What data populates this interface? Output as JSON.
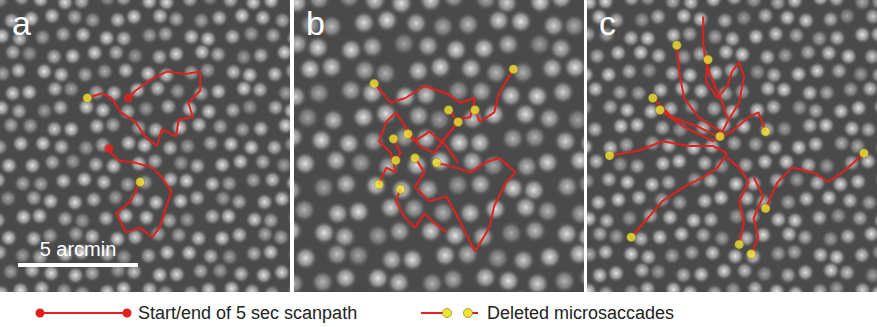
{
  "chart_data": [
    {
      "type": "line",
      "title": "a",
      "xlim": [
        0,
        12
      ],
      "ylim": [
        0,
        12
      ],
      "tick_labels": false,
      "grid": false,
      "scanpath": [
        [
          [
            5.3,
            4.0
          ],
          [
            5.6,
            3.7
          ],
          [
            6.3,
            3.2
          ],
          [
            6.9,
            2.9
          ],
          [
            7.7,
            3.0
          ],
          [
            8.3,
            2.9
          ],
          [
            8.3,
            3.7
          ],
          [
            7.8,
            4.2
          ],
          [
            8.0,
            4.8
          ],
          [
            7.4,
            4.9
          ],
          [
            7.3,
            5.6
          ],
          [
            6.7,
            5.3
          ],
          [
            6.5,
            6.0
          ],
          [
            6.0,
            5.6
          ],
          [
            5.6,
            5.0
          ],
          [
            5.0,
            4.6
          ],
          [
            4.6,
            4.0
          ],
          [
            4.2,
            3.8
          ],
          [
            3.6,
            4.0
          ]
        ],
        [
          [
            5.8,
            7.5
          ],
          [
            5.4,
            8.3
          ],
          [
            4.8,
            8.8
          ],
          [
            5.2,
            9.6
          ],
          [
            5.8,
            9.4
          ],
          [
            6.3,
            9.8
          ],
          [
            6.6,
            9.4
          ],
          [
            6.9,
            8.5
          ],
          [
            7.1,
            7.9
          ],
          [
            6.7,
            7.3
          ],
          [
            6.3,
            6.9
          ],
          [
            5.6,
            6.7
          ],
          [
            4.9,
            6.6
          ],
          [
            4.6,
            6.3
          ],
          [
            4.5,
            6.1
          ]
        ]
      ],
      "start": [
        5.3,
        4.0
      ],
      "end": [
        4.5,
        6.1
      ],
      "deleted_microsaccades": [
        [
          3.6,
          4.0
        ],
        [
          5.8,
          7.5
        ]
      ],
      "scale_bar": {
        "length": 5,
        "label": "5 arcmin"
      }
    },
    {
      "type": "line",
      "title": "b",
      "xlim": [
        0,
        12
      ],
      "ylim": [
        0,
        12
      ],
      "tick_labels": false,
      "grid": false,
      "scanpath": [
        [
          [
            3.3,
            3.4
          ],
          [
            4.0,
            4.2
          ],
          [
            4.6,
            4.0
          ],
          [
            5.4,
            3.5
          ],
          [
            6.3,
            3.8
          ],
          [
            6.9,
            4.2
          ],
          [
            7.5,
            4.0
          ],
          [
            7.3,
            4.8
          ],
          [
            6.7,
            4.9
          ],
          [
            6.4,
            4.5
          ]
        ],
        [
          [
            9.1,
            2.8
          ],
          [
            8.5,
            3.8
          ],
          [
            8.3,
            4.6
          ],
          [
            7.7,
            5.0
          ],
          [
            7.5,
            4.5
          ]
        ],
        [
          [
            6.8,
            5.0
          ],
          [
            6.3,
            5.6
          ],
          [
            5.8,
            6.3
          ],
          [
            5.2,
            6.0
          ],
          [
            4.8,
            5.6
          ],
          [
            4.7,
            5.5
          ]
        ],
        [
          [
            4.1,
            5.7
          ],
          [
            4.4,
            6.3
          ],
          [
            4.2,
            6.6
          ]
        ],
        [
          [
            5.0,
            6.5
          ],
          [
            5.4,
            7.1
          ],
          [
            5.0,
            7.7
          ],
          [
            5.6,
            8.3
          ],
          [
            6.3,
            8.1
          ],
          [
            6.7,
            8.8
          ],
          [
            7.1,
            9.6
          ],
          [
            7.5,
            10.4
          ],
          [
            8.1,
            9.4
          ],
          [
            8.3,
            8.5
          ],
          [
            8.8,
            7.5
          ],
          [
            9.2,
            7.1
          ],
          [
            8.5,
            6.5
          ],
          [
            7.9,
            6.7
          ],
          [
            7.3,
            7.1
          ],
          [
            6.7,
            6.9
          ],
          [
            5.9,
            6.7
          ]
        ],
        [
          [
            4.4,
            7.8
          ],
          [
            4.2,
            8.3
          ],
          [
            4.6,
            9.0
          ],
          [
            5.0,
            9.4
          ],
          [
            5.4,
            8.8
          ],
          [
            5.8,
            9.2
          ],
          [
            6.3,
            9.6
          ]
        ],
        [
          [
            3.5,
            7.6
          ],
          [
            3.8,
            6.9
          ],
          [
            4.2,
            7.1
          ],
          [
            4.0,
            6.3
          ],
          [
            3.5,
            5.8
          ],
          [
            3.8,
            5.0
          ],
          [
            4.2,
            4.6
          ],
          [
            4.6,
            5.2
          ],
          [
            5.0,
            5.8
          ],
          [
            5.6,
            5.4
          ],
          [
            6.3,
            6.0
          ],
          [
            6.8,
            6.7
          ]
        ]
      ],
      "deleted_microsaccades": [
        [
          3.3,
          3.4
        ],
        [
          9.1,
          2.8
        ],
        [
          4.7,
          5.5
        ],
        [
          6.4,
          4.5
        ],
        [
          7.5,
          4.5
        ],
        [
          6.8,
          5.0
        ],
        [
          4.2,
          6.6
        ],
        [
          5.0,
          6.5
        ],
        [
          5.9,
          6.7
        ],
        [
          3.5,
          7.6
        ],
        [
          4.4,
          7.8
        ],
        [
          4.1,
          5.7
        ]
      ]
    },
    {
      "type": "line",
      "title": "c",
      "xlim": [
        0,
        12
      ],
      "ylim": [
        0,
        12
      ],
      "tick_labels": false,
      "grid": false,
      "scanpath": [
        [
          [
            3.7,
            1.8
          ],
          [
            3.8,
            2.9
          ],
          [
            4.0,
            4.0
          ],
          [
            4.6,
            4.8
          ],
          [
            5.2,
            5.2
          ],
          [
            5.6,
            5.4
          ],
          [
            5.5,
            5.6
          ]
        ],
        [
          [
            5.0,
            2.4
          ],
          [
            4.9,
            3.3
          ],
          [
            5.4,
            4.0
          ],
          [
            5.8,
            3.5
          ],
          [
            6.0,
            2.9
          ],
          [
            6.3,
            2.5
          ],
          [
            6.5,
            3.1
          ],
          [
            6.3,
            4.2
          ],
          [
            5.8,
            5.0
          ],
          [
            5.5,
            5.6
          ]
        ],
        [
          [
            2.7,
            4.0
          ],
          [
            3.5,
            4.8
          ],
          [
            4.6,
            5.2
          ],
          [
            5.4,
            5.6
          ]
        ],
        [
          [
            3.0,
            4.5
          ],
          [
            4.0,
            5.2
          ],
          [
            5.2,
            5.8
          ],
          [
            6.0,
            5.4
          ],
          [
            6.7,
            4.8
          ],
          [
            7.1,
            4.6
          ],
          [
            7.4,
            5.4
          ]
        ],
        [
          [
            0.9,
            6.4
          ],
          [
            2.1,
            6.2
          ],
          [
            3.1,
            5.8
          ],
          [
            4.2,
            6.0
          ],
          [
            5.2,
            6.0
          ],
          [
            5.8,
            6.3
          ]
        ],
        [
          [
            11.5,
            6.3
          ],
          [
            10.6,
            7.1
          ],
          [
            10.0,
            7.5
          ],
          [
            9.4,
            7.1
          ],
          [
            8.5,
            6.9
          ],
          [
            7.9,
            7.5
          ],
          [
            7.4,
            8.6
          ]
        ],
        [
          [
            1.8,
            9.8
          ],
          [
            2.5,
            9.0
          ],
          [
            3.1,
            8.3
          ],
          [
            4.0,
            7.7
          ],
          [
            4.8,
            7.3
          ],
          [
            5.4,
            6.9
          ],
          [
            5.8,
            6.3
          ]
        ],
        [
          [
            6.3,
            10.1
          ],
          [
            6.5,
            9.2
          ],
          [
            6.3,
            8.3
          ],
          [
            6.7,
            7.5
          ],
          [
            6.3,
            6.9
          ],
          [
            5.8,
            6.5
          ]
        ],
        [
          [
            6.8,
            10.5
          ],
          [
            7.1,
            9.8
          ],
          [
            6.9,
            9.0
          ],
          [
            7.3,
            8.1
          ],
          [
            6.9,
            7.3
          ]
        ],
        [
          [
            4.8,
            0.6
          ],
          [
            4.8,
            1.7
          ],
          [
            4.9,
            2.5
          ],
          [
            5.2,
            3.3
          ],
          [
            5.6,
            4.2
          ],
          [
            5.8,
            4.8
          ]
        ]
      ],
      "deleted_microsaccades": [
        [
          3.7,
          1.8
        ],
        [
          5.0,
          2.4
        ],
        [
          2.7,
          4.0
        ],
        [
          3.0,
          4.5
        ],
        [
          5.5,
          5.6
        ],
        [
          7.4,
          5.4
        ],
        [
          0.9,
          6.4
        ],
        [
          11.5,
          6.3
        ],
        [
          7.4,
          8.6
        ],
        [
          1.8,
          9.8
        ],
        [
          6.3,
          10.1
        ],
        [
          6.8,
          10.5
        ]
      ]
    }
  ],
  "key": [
    {
      "label": "Start/end of 5 sec scanpath",
      "color": "#e3211c"
    },
    {
      "label": "Deleted microsaccades",
      "color": "#f2e530"
    }
  ]
}
